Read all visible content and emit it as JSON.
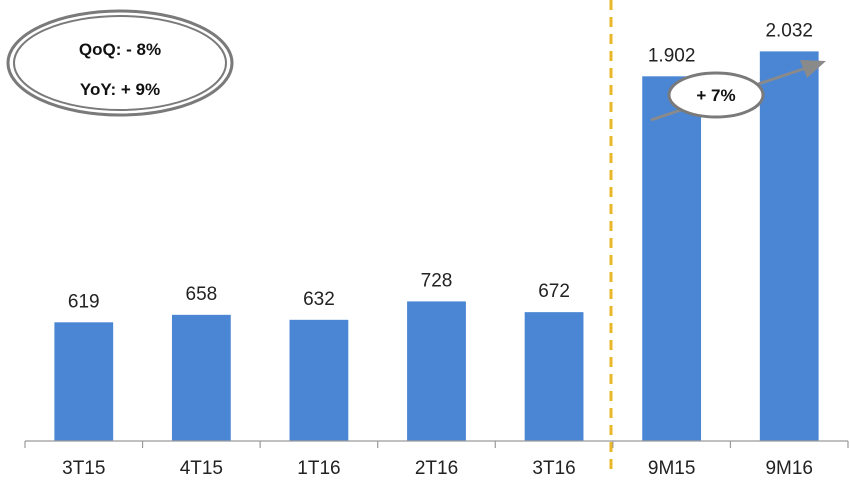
{
  "chart_data": {
    "type": "bar",
    "categories": [
      "3T15",
      "4T15",
      "1T16",
      "2T16",
      "3T16",
      "9M15",
      "9M16"
    ],
    "values": [
      619,
      658,
      632,
      728,
      672,
      1902,
      2032
    ],
    "value_labels": [
      "619",
      "658",
      "632",
      "728",
      "672",
      "1.902",
      "2.032"
    ],
    "ylim": [
      0,
      2300
    ],
    "grid": false,
    "bar_color": "#4A86D4",
    "divider_after_index": 4,
    "divider_color": "#E8B82A"
  },
  "annotations": {
    "qoq": "QoQ: - 8%",
    "yoy": "YoY: + 9%",
    "growth": "+ 7%"
  },
  "colors": {
    "bubble_stroke": "#7a7a7a",
    "arrow": "#8a8a8a"
  }
}
